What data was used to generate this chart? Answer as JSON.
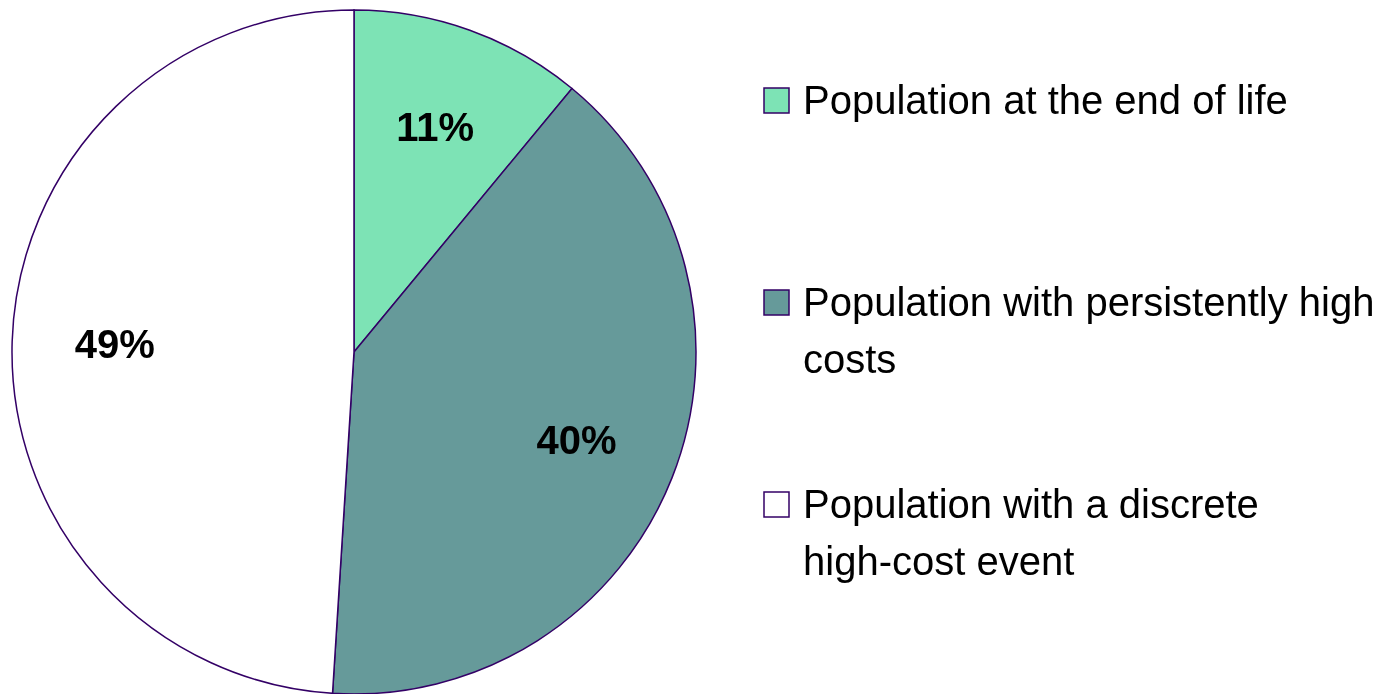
{
  "chart_data": {
    "type": "pie",
    "categories": [
      "Population at the end of life",
      "Population with persistently high costs",
      "Population with a discrete high-cost event"
    ],
    "values": [
      11,
      40,
      49
    ],
    "colors": [
      "#7de3b5",
      "#669a9a",
      "#ffffff"
    ],
    "value_labels": [
      "11%",
      "40%",
      "49%"
    ],
    "legend": "right"
  }
}
